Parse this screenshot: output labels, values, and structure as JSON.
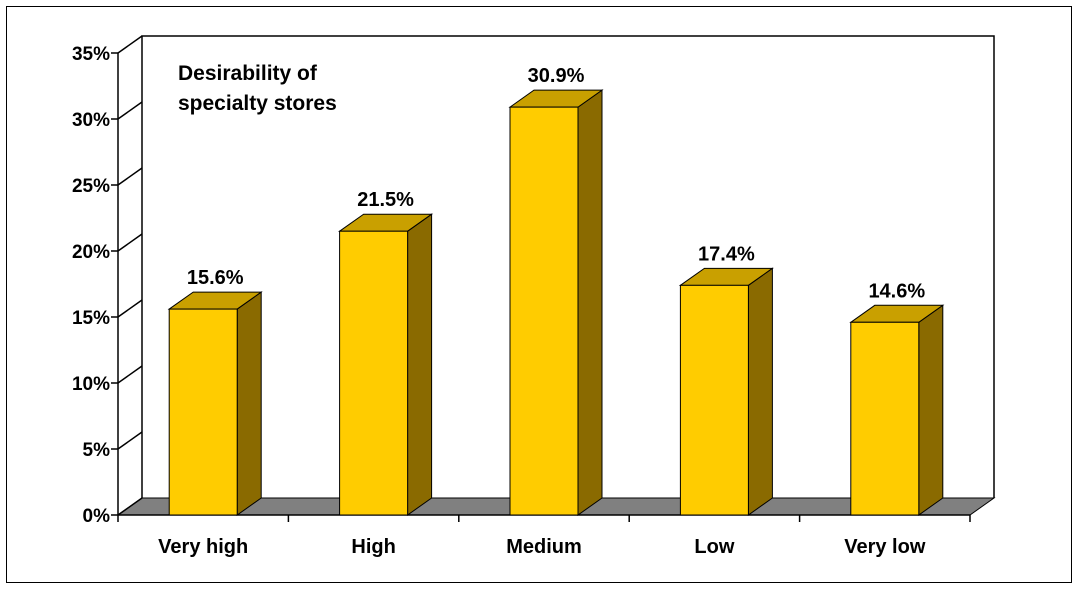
{
  "chart_data": {
    "type": "bar",
    "title": "Desirability of specialty stores",
    "title_lines": [
      "Desirability of",
      "specialty stores"
    ],
    "categories": [
      "Very high",
      "High",
      "Medium",
      "Low",
      "Very low"
    ],
    "values": [
      15.6,
      21.5,
      30.9,
      17.4,
      14.6
    ],
    "value_labels": [
      "15.6%",
      "21.5%",
      "30.9%",
      "17.4%",
      "14.6%"
    ],
    "ylim": [
      0,
      35
    ],
    "yticks": [
      0,
      5,
      10,
      15,
      20,
      25,
      30,
      35
    ],
    "ytick_labels": [
      "0%",
      "5%",
      "10%",
      "15%",
      "20%",
      "25%",
      "30%",
      "35%"
    ],
    "xlabel": "",
    "ylabel": "",
    "style": "3d",
    "grid": false,
    "legend": "none",
    "colors": {
      "bar_front": "#FFCC00",
      "bar_top": "#C9A000",
      "bar_side": "#8A6A00",
      "floor": "#808080"
    }
  }
}
